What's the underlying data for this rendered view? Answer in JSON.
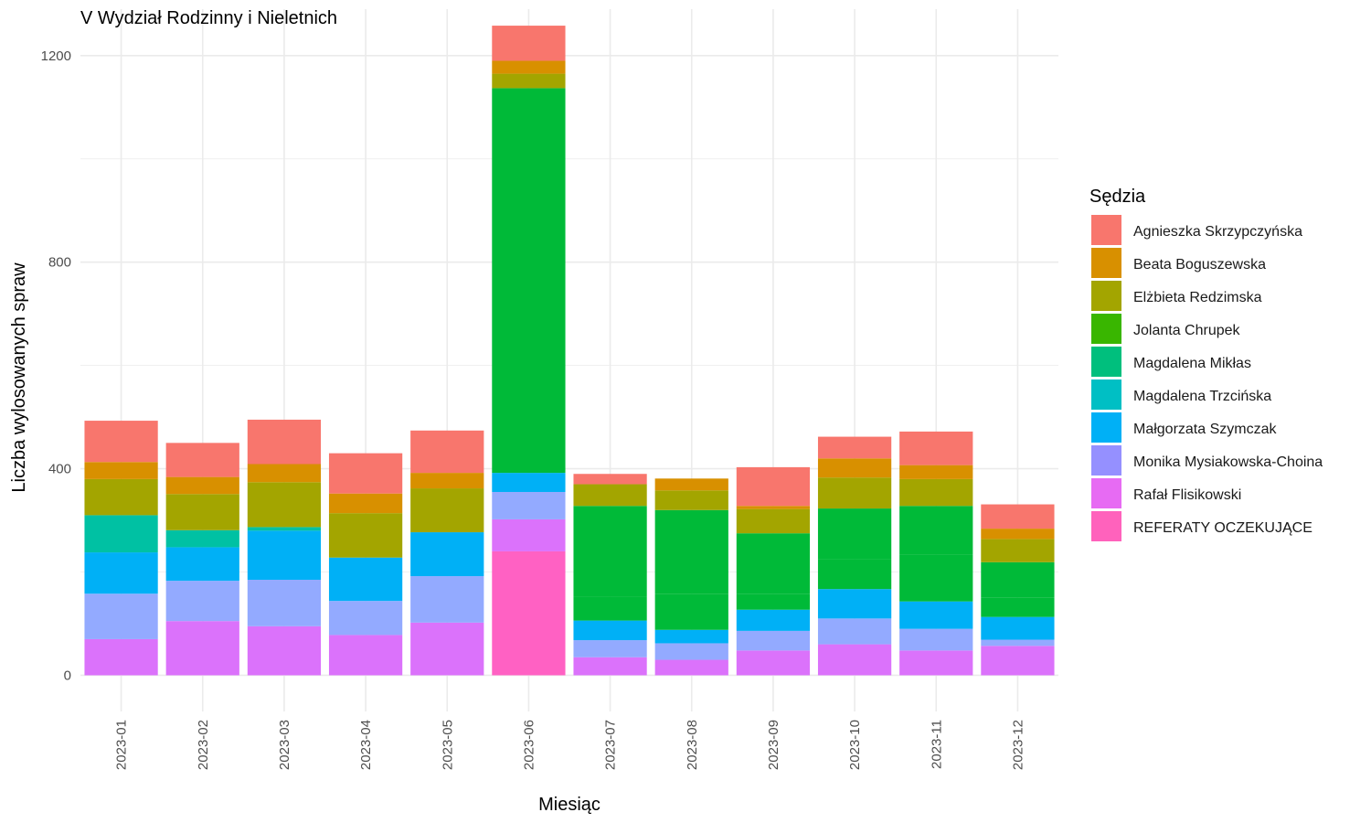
{
  "chart_data": {
    "type": "bar",
    "stacked": true,
    "title": "V Wydział Rodzinny i Nieletnich",
    "xlabel": "Miesiąc",
    "ylabel": "Liczba wylosowanych spraw",
    "ylim": [
      -70,
      1290
    ],
    "yticks": [
      0,
      400,
      800,
      1200
    ],
    "grid": true,
    "legend_title": "Sędzia",
    "legend_position": "right",
    "categories": [
      "2023-01",
      "2023-02",
      "2023-03",
      "2023-04",
      "2023-05",
      "2023-06",
      "2023-07",
      "2023-08",
      "2023-09",
      "2023-10",
      "2023-11",
      "2023-12"
    ],
    "series": [
      {
        "name": "REFERATY OCZEKUJĄCE",
        "color": "#FF61C3",
        "values": [
          0,
          0,
          0,
          0,
          0,
          240,
          0,
          0,
          0,
          0,
          0,
          0
        ]
      },
      {
        "name": "Rafał Flisikowski",
        "color": "#DB72FB",
        "values": [
          70,
          105,
          95,
          78,
          102,
          62,
          35,
          30,
          48,
          60,
          48,
          57
        ]
      },
      {
        "name": "Monika Mysiakowska-Choina",
        "color": "#93AAFF",
        "values": [
          88,
          78,
          90,
          66,
          90,
          53,
          33,
          32,
          38,
          50,
          42,
          12
        ]
      },
      {
        "name": "Małgorzata Szymczak",
        "color": "#00B0F6",
        "values": [
          80,
          65,
          95,
          84,
          85,
          37,
          38,
          26,
          41,
          57,
          53,
          44
        ]
      },
      {
        "name": "Magdalena Trzcińska",
        "color": "#00C1A3",
        "values": [
          72,
          33,
          7,
          0,
          0,
          0,
          0,
          0,
          0,
          0,
          0,
          0
        ]
      },
      {
        "name": "Magdalena Mikłas",
        "color": "#00BA38",
        "values": [
          0,
          0,
          0,
          0,
          0,
          745,
          47,
          70,
          30,
          58,
          90,
          38
        ]
      },
      {
        "name": "Jolanta Chrupek",
        "color": "#00BA38",
        "values": [
          0,
          0,
          0,
          0,
          0,
          0,
          175,
          162,
          118,
          98,
          95,
          68
        ]
      },
      {
        "name": "Elżbieta Redzimska",
        "color": "#A3A500",
        "values": [
          70,
          70,
          87,
          86,
          85,
          28,
          42,
          38,
          47,
          60,
          52,
          45
        ]
      },
      {
        "name": "Beata Boguszewska",
        "color": "#D89000",
        "values": [
          33,
          33,
          35,
          38,
          30,
          25,
          0,
          23,
          6,
          37,
          27,
          20
        ]
      },
      {
        "name": "Agnieszka Skrzypczyńska",
        "color": "#F8766D",
        "values": [
          80,
          66,
          86,
          78,
          82,
          68,
          20,
          0,
          75,
          42,
          65,
          47
        ]
      }
    ],
    "legend_order": [
      {
        "name": "Agnieszka Skrzypczyńska",
        "color": "#F8766D"
      },
      {
        "name": "Beata Boguszewska",
        "color": "#D89000"
      },
      {
        "name": "Elżbieta Redzimska",
        "color": "#A3A500"
      },
      {
        "name": "Jolanta Chrupek",
        "color": "#39B600"
      },
      {
        "name": "Magdalena Mikłas",
        "color": "#00BF7D"
      },
      {
        "name": "Magdalena Trzcińska",
        "color": "#00BFC4"
      },
      {
        "name": "Małgorzata Szymczak",
        "color": "#00B0F6"
      },
      {
        "name": "Monika Mysiakowska-Choina",
        "color": "#9590FF"
      },
      {
        "name": "Rafał Flisikowski",
        "color": "#E76BF3"
      },
      {
        "name": "REFERATY OCZEKUJĄCE",
        "color": "#FF62BC"
      }
    ]
  }
}
